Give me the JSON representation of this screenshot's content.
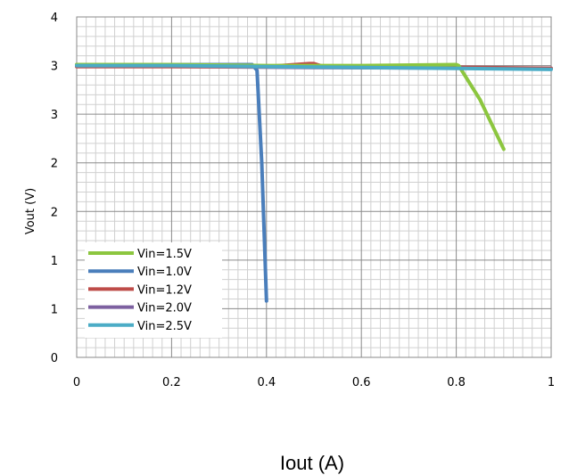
{
  "chart_data": {
    "type": "line",
    "title": "",
    "xlabel": "Iout (A)",
    "ylabel": "Vout (V)",
    "xlim": [
      0,
      1
    ],
    "ylim": [
      0,
      3.5
    ],
    "x_ticks": [
      {
        "value": 0,
        "label": "0"
      },
      {
        "value": 0.2,
        "label": "0.2"
      },
      {
        "value": 0.4,
        "label": "0.4"
      },
      {
        "value": 0.6,
        "label": "0.6"
      },
      {
        "value": 0.8,
        "label": "0.8"
      },
      {
        "value": 1,
        "label": "1"
      }
    ],
    "y_ticks": [
      {
        "value": 0,
        "label": "0"
      },
      {
        "value": 0.5,
        "label": "1"
      },
      {
        "value": 1.0,
        "label": "1"
      },
      {
        "value": 1.5,
        "label": "2"
      },
      {
        "value": 2.0,
        "label": "2"
      },
      {
        "value": 2.5,
        "label": "3"
      },
      {
        "value": 3.0,
        "label": "3"
      },
      {
        "value": 3.5,
        "label": "4"
      }
    ],
    "grid": true,
    "legend_position": "bottom-left",
    "series": [
      {
        "name": "Vin=1.5V",
        "color": "#8cc63f",
        "x": [
          0,
          0.2,
          0.4,
          0.6,
          0.8,
          0.805,
          0.85,
          0.9
        ],
        "y": [
          3.01,
          3.01,
          3.0,
          3.0,
          3.01,
          3.0,
          2.65,
          2.14
        ]
      },
      {
        "name": "Vin=1.0V",
        "color": "#4a7ebb",
        "x": [
          0,
          0.2,
          0.37,
          0.38,
          0.39,
          0.4
        ],
        "y": [
          3.01,
          3.01,
          3.01,
          2.95,
          2.0,
          0.58
        ]
      },
      {
        "name": "Vin=1.2V",
        "color": "#be4b48",
        "x": [
          0,
          0.2,
          0.4,
          0.49,
          0.5,
          0.52,
          0.7,
          1.0
        ],
        "y": [
          2.99,
          2.99,
          2.99,
          3.02,
          3.02,
          2.99,
          2.99,
          2.97
        ]
      },
      {
        "name": "Vin=2.0V",
        "color": "#7d60a0",
        "x": [
          0,
          0.5,
          1.0
        ],
        "y": [
          3.0,
          2.98,
          2.97
        ]
      },
      {
        "name": "Vin=2.5V",
        "color": "#4bacc6",
        "x": [
          0,
          0.2,
          0.4,
          0.6,
          0.8,
          1.0
        ],
        "y": [
          3.0,
          3.0,
          2.99,
          2.98,
          2.97,
          2.96
        ]
      }
    ],
    "legend_order": [
      0,
      1,
      2,
      3,
      4
    ]
  }
}
